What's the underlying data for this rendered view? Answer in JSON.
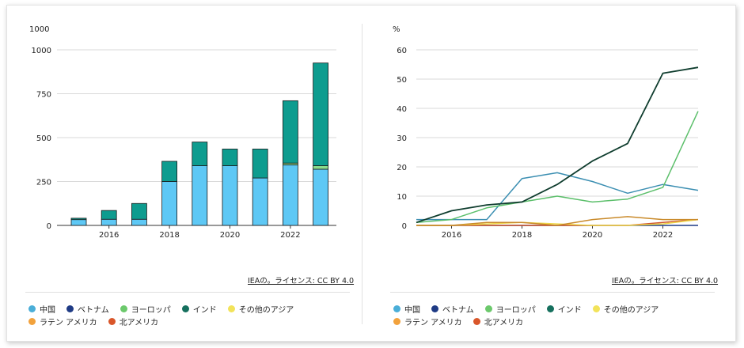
{
  "colors": {
    "china": "#5ec8f5",
    "vietnam": "#1f3b85",
    "europe": "#8bdc8b",
    "india": "#0e9c8f",
    "other_asia": "#f2e35a",
    "latam": "#f2b25c",
    "north_america": "#e07a3a"
  },
  "legend": {
    "items": [
      {
        "label": "中国",
        "color": "#4aaed8"
      },
      {
        "label": "ベトナム",
        "color": "#1f3b85"
      },
      {
        "label": "ヨーロッパ",
        "color": "#6cc96c"
      },
      {
        "label": "インド",
        "color": "#16705e"
      },
      {
        "label": "その他のアジア",
        "color": "#f2e35a"
      },
      {
        "label": "ラテン アメリカ",
        "color": "#f2a23c"
      },
      {
        "label": "北アメリカ",
        "color": "#d9562a"
      }
    ]
  },
  "source_text": "IEAの。ライセンス: CC BY 4.0",
  "chart_data": [
    {
      "type": "bar",
      "unit_label": "1000",
      "categories": [
        "2015",
        "2016",
        "2017",
        "2018",
        "2019",
        "2020",
        "2021",
        "2022",
        "2023"
      ],
      "x_tick_labels": [
        "2016",
        "2018",
        "2020",
        "2022"
      ],
      "y_ticks": [
        0,
        250,
        500,
        750,
        1000
      ],
      "ylim": [
        0,
        1000
      ],
      "stacked": true,
      "series": [
        {
          "name": "中国",
          "values": [
            33,
            35,
            35,
            250,
            340,
            340,
            270,
            345,
            320
          ]
        },
        {
          "name": "ヨーロッパ",
          "values": [
            0,
            0,
            0,
            0,
            0,
            0,
            0,
            10,
            20
          ]
        },
        {
          "name": "インド",
          "values": [
            8,
            50,
            90,
            115,
            135,
            95,
            165,
            355,
            585
          ]
        }
      ]
    },
    {
      "type": "line",
      "unit_label": "%",
      "x": [
        2015,
        2016,
        2017,
        2018,
        2019,
        2020,
        2021,
        2022,
        2023
      ],
      "x_tick_labels": [
        "2016",
        "2018",
        "2020",
        "2022"
      ],
      "y_ticks": [
        0,
        10,
        20,
        30,
        40,
        50,
        60
      ],
      "ylim": [
        0,
        60
      ],
      "series": [
        {
          "name": "中国",
          "values": [
            2,
            2,
            2,
            16,
            18,
            15,
            11,
            14,
            12
          ]
        },
        {
          "name": "ヨーロッパ",
          "values": [
            1,
            2,
            6,
            8,
            10,
            8,
            9,
            13,
            39
          ]
        },
        {
          "name": "インド",
          "values": [
            1,
            5,
            7,
            8,
            14,
            22,
            28,
            52,
            54
          ]
        },
        {
          "name": "ベトナム",
          "values": [
            0,
            0,
            0,
            0,
            0,
            0,
            0,
            0,
            0
          ]
        },
        {
          "name": "その他のアジア",
          "values": [
            0,
            0,
            0.5,
            1,
            0.5,
            0,
            0,
            0.5,
            2
          ]
        },
        {
          "name": "ラテン アメリカ",
          "values": [
            0,
            0,
            1,
            1,
            0,
            2,
            3,
            2,
            2
          ]
        },
        {
          "name": "北アメリカ",
          "values": [
            0,
            0,
            0,
            0,
            0,
            0,
            0,
            1,
            2
          ]
        }
      ]
    }
  ]
}
